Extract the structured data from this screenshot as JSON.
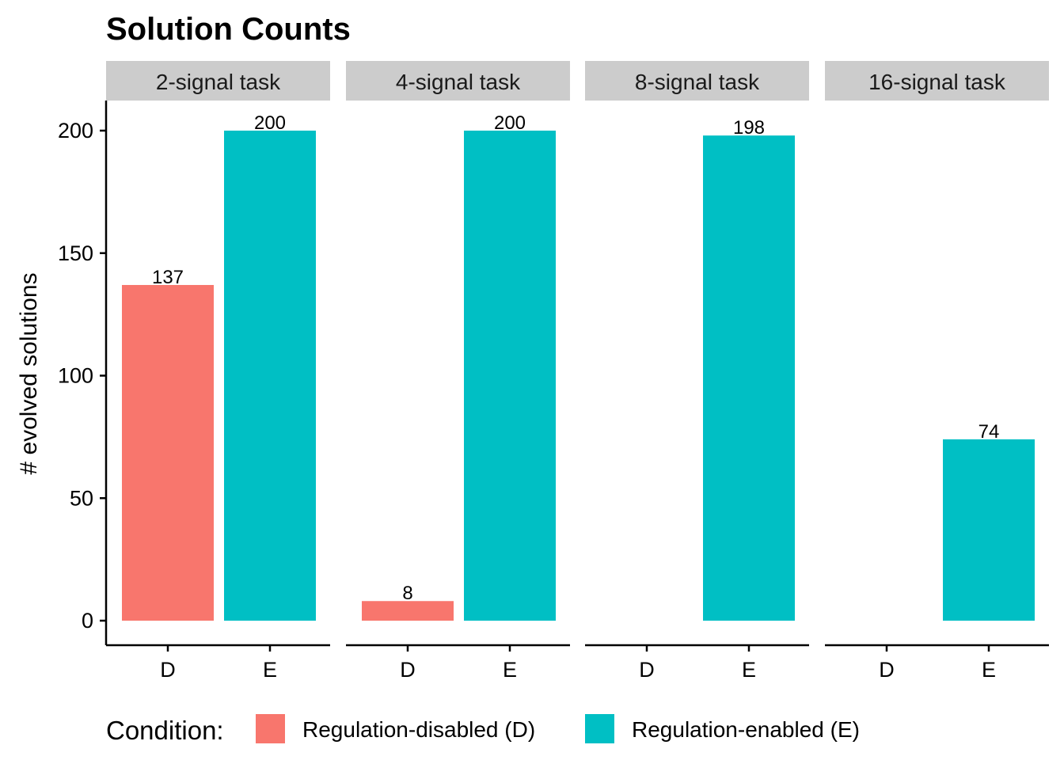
{
  "chart_data": {
    "type": "bar",
    "title": "Solution Counts",
    "ylabel": "# evolved solutions",
    "xlabel": "",
    "ylim": [
      -10,
      212
    ],
    "yticks": [
      0,
      50,
      100,
      150,
      200
    ],
    "categories": [
      "D",
      "E"
    ],
    "facets": [
      {
        "label": "2-signal task",
        "values": [
          137,
          200
        ],
        "labels": [
          "137",
          "200"
        ]
      },
      {
        "label": "4-signal task",
        "values": [
          8,
          200
        ],
        "labels": [
          "8",
          "200"
        ]
      },
      {
        "label": "8-signal task",
        "values": [
          0,
          198
        ],
        "labels": [
          "",
          "198"
        ]
      },
      {
        "label": "16-signal task",
        "values": [
          0,
          74
        ],
        "labels": [
          "",
          "74"
        ]
      }
    ],
    "legend": {
      "title": "Condition:",
      "position": "bottom",
      "entries": [
        {
          "name": "Regulation-disabled (D)",
          "color": "#F8766D"
        },
        {
          "name": "Regulation-enabled (E)",
          "color": "#00BFC4"
        }
      ]
    },
    "strip_color": "#CCCCCC",
    "grid": false
  }
}
